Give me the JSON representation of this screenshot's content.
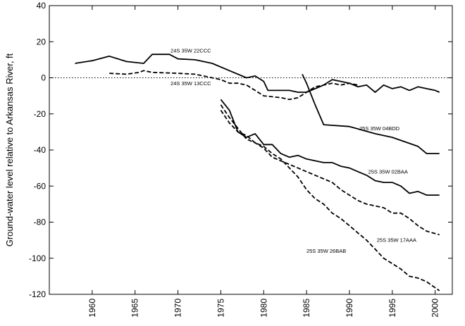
{
  "chart_data": {
    "type": "line",
    "title": "",
    "xlabel": "",
    "ylabel": "Ground-water level relative to Arkansas River, ft",
    "xlim": [
      1955,
      2002
    ],
    "ylim": [
      -120,
      40
    ],
    "xticks": [
      1960,
      1965,
      1970,
      1975,
      1980,
      1985,
      1990,
      1995,
      2000
    ],
    "yticks": [
      40,
      20,
      0,
      -20,
      -40,
      -60,
      -80,
      -100,
      -120
    ],
    "reference_line": {
      "y": 0,
      "style": "dotted"
    },
    "grid": false,
    "legend": "none",
    "series": [
      {
        "name": "24S 35W 22CCC",
        "style": "solid",
        "label_at": [
          1971.5,
          14
        ],
        "points": [
          [
            1958,
            8
          ],
          [
            1960,
            9.5
          ],
          [
            1962,
            12
          ],
          [
            1964,
            9
          ],
          [
            1966,
            8
          ],
          [
            1967,
            13
          ],
          [
            1969,
            13
          ],
          [
            1970,
            10.5
          ],
          [
            1972,
            10
          ],
          [
            1974,
            8
          ],
          [
            1976,
            4
          ],
          [
            1978,
            0
          ],
          [
            1979,
            1
          ],
          [
            1980,
            -2
          ],
          [
            1980.5,
            -7
          ],
          [
            1983,
            -7
          ],
          [
            1984,
            -8
          ],
          [
            1985,
            -8
          ],
          [
            1986,
            -6
          ],
          [
            1987,
            -4
          ],
          [
            1988,
            -1
          ],
          [
            1989,
            -2
          ],
          [
            1990,
            -3
          ],
          [
            1991,
            -5
          ],
          [
            1992,
            -4
          ],
          [
            1993,
            -8
          ],
          [
            1994,
            -4
          ],
          [
            1995,
            -6
          ],
          [
            1996,
            -5
          ],
          [
            1997,
            -7
          ],
          [
            1998,
            -5
          ],
          [
            1999,
            -6
          ],
          [
            2000,
            -7
          ],
          [
            2000.5,
            -8
          ]
        ]
      },
      {
        "name": "24S 35W 13CCC",
        "style": "dashed",
        "label_at": [
          1971.5,
          -4
        ],
        "points": [
          [
            1962,
            2.5
          ],
          [
            1964,
            2
          ],
          [
            1965.5,
            3
          ],
          [
            1966,
            4
          ],
          [
            1967,
            3
          ],
          [
            1970,
            2.5
          ],
          [
            1972,
            2
          ],
          [
            1974,
            0
          ],
          [
            1975,
            -1
          ],
          [
            1976,
            -3
          ],
          [
            1977,
            -3
          ],
          [
            1978,
            -4
          ],
          [
            1979,
            -7
          ],
          [
            1980,
            -10
          ],
          [
            1982,
            -11
          ],
          [
            1983,
            -12
          ],
          [
            1984,
            -11
          ],
          [
            1985,
            -8
          ],
          [
            1986,
            -5
          ],
          [
            1987,
            -4
          ],
          [
            1988,
            -3
          ],
          [
            1989,
            -4
          ],
          [
            1990,
            -3
          ],
          [
            1991,
            -4
          ]
        ]
      },
      {
        "name": "25S 35W 04BDD",
        "style": "solid",
        "label_at": [
          1993.5,
          -29
        ],
        "points": [
          [
            1984.5,
            2
          ],
          [
            1985,
            -3
          ],
          [
            1986,
            -15
          ],
          [
            1987,
            -26
          ],
          [
            1990,
            -27
          ],
          [
            1993,
            -31
          ],
          [
            1995,
            -33
          ],
          [
            1998,
            -38
          ],
          [
            1999,
            -42
          ],
          [
            2000.5,
            -42
          ]
        ]
      },
      {
        "name": "25S 35W 02BAA",
        "style": "solid",
        "label_at": [
          1994.5,
          -53
        ],
        "points": [
          [
            1975,
            -12
          ],
          [
            1976,
            -18
          ],
          [
            1977,
            -30
          ],
          [
            1978,
            -33
          ],
          [
            1979,
            -31
          ],
          [
            1980,
            -37
          ],
          [
            1981,
            -37
          ],
          [
            1982,
            -42
          ],
          [
            1983,
            -44
          ],
          [
            1984,
            -43
          ],
          [
            1985,
            -45
          ],
          [
            1986,
            -46
          ],
          [
            1987,
            -47
          ],
          [
            1988,
            -47
          ],
          [
            1989,
            -49
          ],
          [
            1990,
            -50
          ],
          [
            1991,
            -52
          ],
          [
            1992,
            -54
          ],
          [
            1993,
            -57
          ],
          [
            1994,
            -58
          ],
          [
            1995,
            -58
          ],
          [
            1996,
            -60
          ],
          [
            1997,
            -64
          ],
          [
            1998,
            -63
          ],
          [
            1999,
            -65
          ],
          [
            2000.5,
            -65
          ]
        ]
      },
      {
        "name": "25S 35W 17AAA",
        "style": "dashed",
        "label_at": [
          1995.5,
          -91
        ],
        "points": [
          [
            1975,
            -15
          ],
          [
            1976,
            -22
          ],
          [
            1977,
            -28
          ],
          [
            1978,
            -34
          ],
          [
            1979,
            -36
          ],
          [
            1980,
            -39
          ],
          [
            1981,
            -44
          ],
          [
            1982,
            -46
          ],
          [
            1983,
            -48
          ],
          [
            1984,
            -50
          ],
          [
            1985,
            -52
          ],
          [
            1986,
            -54
          ],
          [
            1987,
            -56
          ],
          [
            1988,
            -58
          ],
          [
            1989,
            -62
          ],
          [
            1990,
            -65
          ],
          [
            1991,
            -68
          ],
          [
            1992,
            -70
          ],
          [
            1993,
            -71
          ],
          [
            1994,
            -72
          ],
          [
            1995,
            -75
          ],
          [
            1996,
            -75
          ],
          [
            1997,
            -78
          ],
          [
            1998,
            -82
          ],
          [
            1999,
            -85
          ],
          [
            2000.5,
            -87
          ]
        ]
      },
      {
        "name": "25S 35W 26BAB",
        "style": "dashed",
        "label_at": [
          1987.3,
          -97
        ],
        "points": [
          [
            1975,
            -18
          ],
          [
            1976,
            -25
          ],
          [
            1977,
            -30
          ],
          [
            1978,
            -32
          ],
          [
            1979,
            -36
          ],
          [
            1980,
            -38
          ],
          [
            1981,
            -42
          ],
          [
            1982,
            -45
          ],
          [
            1983,
            -50
          ],
          [
            1984,
            -55
          ],
          [
            1985,
            -62
          ],
          [
            1986,
            -67
          ],
          [
            1987,
            -70
          ],
          [
            1988,
            -75
          ],
          [
            1989,
            -78
          ],
          [
            1990,
            -82
          ],
          [
            1991,
            -86
          ],
          [
            1992,
            -90
          ],
          [
            1993,
            -95
          ],
          [
            1994,
            -100
          ],
          [
            1995,
            -103
          ],
          [
            1996,
            -106
          ],
          [
            1997,
            -110
          ],
          [
            1998,
            -111
          ],
          [
            1999,
            -113
          ],
          [
            2000.5,
            -118
          ]
        ]
      }
    ]
  }
}
